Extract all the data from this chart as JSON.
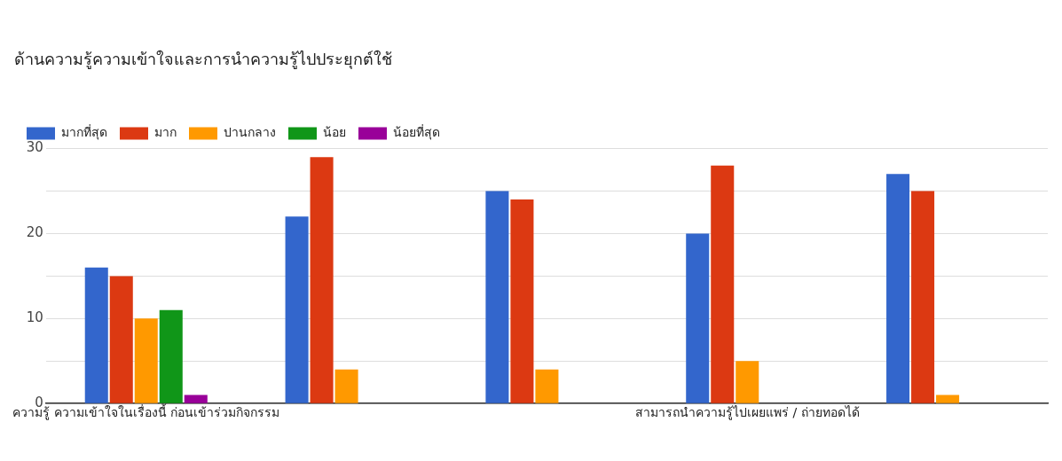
{
  "chart_data": {
    "type": "bar",
    "title": "ด้านความรู้ความเข้าใจและการนำความรู้ไปประยุกต์ใช้",
    "categories": [
      "ความรู้ ความเข้าใจในเรื่องนี้ ก่อนเข้าร่วมกิจกรรม",
      null,
      null,
      "สามารถนำความรู้ไปเผยแพร่ / ถ่ายทอดได้",
      null
    ],
    "series": [
      {
        "name": "มากที่สุด",
        "color": "#3366cc",
        "values": [
          16,
          22,
          25,
          20,
          27
        ]
      },
      {
        "name": "มาก",
        "color": "#dc3912",
        "values": [
          15,
          29,
          24,
          28,
          25
        ]
      },
      {
        "name": "ปานกลาง",
        "color": "#ff9900",
        "values": [
          10,
          4,
          4,
          5,
          1
        ]
      },
      {
        "name": "น้อย",
        "color": "#109618",
        "values": [
          11,
          0,
          0,
          0,
          0
        ]
      },
      {
        "name": "น้อยที่สุด",
        "color": "#990099",
        "values": [
          1,
          0,
          0,
          0,
          0
        ]
      }
    ],
    "ylim": [
      0,
      30
    ],
    "yticks": [
      0,
      {
        "value": 5,
        "label": null
      },
      10,
      {
        "value": 15,
        "label": null
      },
      20,
      {
        "value": 25,
        "label": null
      },
      30
    ],
    "grid": "y",
    "legend": "top left"
  }
}
